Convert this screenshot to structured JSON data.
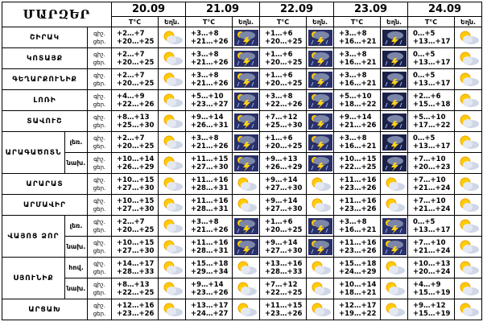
{
  "title": "ՄԱՐԶԵՐ",
  "dates": [
    "20.09",
    "21.09",
    "22.09",
    "23.09",
    "24.09"
  ],
  "col_temp": "T°C",
  "col_weather": "Եղն.",
  "tod_labels": [
    "գիշ.",
    "ցեր."
  ],
  "rows": [
    {
      "region": "ՇԻՐԱԿ",
      "sub": "",
      "days": [
        {
          "t": [
            "+2…+7",
            "+20…+25"
          ],
          "icon": "sun-cloud"
        },
        {
          "t": [
            "+3…+8",
            "+21…+26"
          ],
          "icon": "thunder-rain"
        },
        {
          "t": [
            "+1…+6",
            "+20…+25"
          ],
          "icon": "thunder-rain"
        },
        {
          "t": [
            "+3…+8",
            "+16…+21"
          ],
          "icon": "thunder-rain-night"
        },
        {
          "t": [
            "0…+5",
            "+13…+17"
          ],
          "icon": "sun-cloud"
        }
      ]
    },
    {
      "region": "ԿՈՏԱՅՔ",
      "sub": "",
      "days": [
        {
          "t": [
            "+2…+7",
            "+20…+25"
          ],
          "icon": "sun-cloud"
        },
        {
          "t": [
            "+3…+8",
            "+21…+26"
          ],
          "icon": "thunder-rain"
        },
        {
          "t": [
            "+1…+6",
            "+20…+25"
          ],
          "icon": "thunder-rain"
        },
        {
          "t": [
            "+3…+8",
            "+16…+21"
          ],
          "icon": "thunder-rain-night"
        },
        {
          "t": [
            "0…+5",
            "+13…+17"
          ],
          "icon": "sun-cloud"
        }
      ]
    },
    {
      "region": "ԳԵՂԱՐՔՈՒՆԻՔ",
      "sub": "",
      "days": [
        {
          "t": [
            "+2…+7",
            "+20…+25"
          ],
          "icon": "sun-cloud"
        },
        {
          "t": [
            "+3…+8",
            "+21…+26"
          ],
          "icon": "thunder-rain"
        },
        {
          "t": [
            "+1…+6",
            "+20…+25"
          ],
          "icon": "thunder-rain"
        },
        {
          "t": [
            "+3…+8",
            "+16…+21"
          ],
          "icon": "thunder-rain-night"
        },
        {
          "t": [
            "0…+5",
            "+13…+17"
          ],
          "icon": "sun-cloud"
        }
      ]
    },
    {
      "region": "ԼՈՌԻ",
      "sub": "",
      "days": [
        {
          "t": [
            "+4…+9",
            "+22…+26"
          ],
          "icon": "sun-cloud"
        },
        {
          "t": [
            "+5…+10",
            "+23…+27"
          ],
          "icon": "thunder-rain"
        },
        {
          "t": [
            "+3…+8",
            "+22…+26"
          ],
          "icon": "thunder-rain"
        },
        {
          "t": [
            "+5…+10",
            "+18…+22"
          ],
          "icon": "thunder-rain-night"
        },
        {
          "t": [
            "+2…+6",
            "+15…+18"
          ],
          "icon": "sun-cloud"
        }
      ]
    },
    {
      "region": "ՏԱՎՈՒՇ",
      "sub": "",
      "days": [
        {
          "t": [
            "+8…+13",
            "+25…+30"
          ],
          "icon": "sun-cloud"
        },
        {
          "t": [
            "+9…+14",
            "+26…+31"
          ],
          "icon": "thunder-rain"
        },
        {
          "t": [
            "+7…+12",
            "+25…+30"
          ],
          "icon": "thunder-rain"
        },
        {
          "t": [
            "+9…+14",
            "+21…+26"
          ],
          "icon": "thunder-rain-night"
        },
        {
          "t": [
            "+5…+10",
            "+17…+22"
          ],
          "icon": "sun-cloud"
        }
      ]
    },
    {
      "region": "ԱՐԱԳԱԾՈՏՆ",
      "sub": "լեռ.",
      "days": [
        {
          "t": [
            "+2…+7",
            "+20…+25"
          ],
          "icon": "sun-cloud"
        },
        {
          "t": [
            "+3…+8",
            "+21…+26"
          ],
          "icon": "thunder-rain"
        },
        {
          "t": [
            "+1…+6",
            "+20…+25"
          ],
          "icon": "thunder-rain"
        },
        {
          "t": [
            "+3…+8",
            "+16…+21"
          ],
          "icon": "thunder-rain-night"
        },
        {
          "t": [
            "0…+5",
            "+13…+17"
          ],
          "icon": "sun-cloud"
        }
      ]
    },
    {
      "region": "",
      "sub": "նախ.",
      "days": [
        {
          "t": [
            "+10…+14",
            "+26…+29"
          ],
          "icon": "sun-cloud"
        },
        {
          "t": [
            "+11…+15",
            "+27…+30"
          ],
          "icon": "thunder-rain"
        },
        {
          "t": [
            "+9…+13",
            "+26…+29"
          ],
          "icon": "thunder-rain"
        },
        {
          "t": [
            "+10…+15",
            "+22…+25"
          ],
          "icon": "thunder-rain-night"
        },
        {
          "t": [
            "+7…+10",
            "+20…+23"
          ],
          "icon": "sun-cloud"
        }
      ]
    },
    {
      "region": "ԱՐԱՐԱՏ",
      "sub": "",
      "days": [
        {
          "t": [
            "+10…+15",
            "+27…+30"
          ],
          "icon": "sun-cloud"
        },
        {
          "t": [
            "+11…+16",
            "+28…+31"
          ],
          "icon": "sun-cloud"
        },
        {
          "t": [
            "+9…+14",
            "+27…+30"
          ],
          "icon": "sun-cloud"
        },
        {
          "t": [
            "+11…+16",
            "+23…+26"
          ],
          "icon": "sun-cloud"
        },
        {
          "t": [
            "+7…+10",
            "+21…+24"
          ],
          "icon": "sun-cloud"
        }
      ]
    },
    {
      "region": "ԱՐՄԱՎԻՐ",
      "sub": "",
      "days": [
        {
          "t": [
            "+10…+15",
            "+27…+30"
          ],
          "icon": "sun-cloud"
        },
        {
          "t": [
            "+11…+16",
            "+28…+31"
          ],
          "icon": "sun-cloud"
        },
        {
          "t": [
            "+9…+14",
            "+27…+30"
          ],
          "icon": "sun-cloud"
        },
        {
          "t": [
            "+11…+16",
            "+23…+26"
          ],
          "icon": "sun-cloud"
        },
        {
          "t": [
            "+7…+10",
            "+21…+24"
          ],
          "icon": "sun-cloud"
        }
      ]
    },
    {
      "region": "ՎԱՅՈՑ ՁՈՐ",
      "sub": "լեռ.",
      "days": [
        {
          "t": [
            "+2…+7",
            "+20…+25"
          ],
          "icon": "sun-cloud"
        },
        {
          "t": [
            "+3…+8",
            "+21…+26"
          ],
          "icon": "thunder-rain"
        },
        {
          "t": [
            "+1…+6",
            "+20…+25"
          ],
          "icon": "thunder-rain"
        },
        {
          "t": [
            "+3…+8",
            "+16…+21"
          ],
          "icon": "thunder-rain"
        },
        {
          "t": [
            "0…+5",
            "+13…+17"
          ],
          "icon": "sun-cloud"
        }
      ]
    },
    {
      "region": "",
      "sub": "նախ.",
      "days": [
        {
          "t": [
            "+10…+15",
            "+27…+30"
          ],
          "icon": "sun-cloud"
        },
        {
          "t": [
            "+11…+16",
            "+28…+31"
          ],
          "icon": "thunder-rain"
        },
        {
          "t": [
            "+9…+14",
            "+27…+30"
          ],
          "icon": "thunder-rain"
        },
        {
          "t": [
            "+11…+16",
            "+23…+26"
          ],
          "icon": "thunder-rain"
        },
        {
          "t": [
            "+7…+10",
            "+21…+24"
          ],
          "icon": "sun-cloud"
        }
      ]
    },
    {
      "region": "ՍՅՈՒՆԻՔ",
      "sub": "հով.",
      "days": [
        {
          "t": [
            "+14…+17",
            "+28…+33"
          ],
          "icon": "sun-cloud"
        },
        {
          "t": [
            "+15…+18",
            "+29…+34"
          ],
          "icon": "sun-cloud"
        },
        {
          "t": [
            "+13…+16",
            "+28…+33"
          ],
          "icon": "sun-cloud"
        },
        {
          "t": [
            "+15…+18",
            "+24…+29"
          ],
          "icon": "sun-cloud"
        },
        {
          "t": [
            "+10…+13",
            "+20…+24"
          ],
          "icon": "sun-cloud"
        }
      ]
    },
    {
      "region": "",
      "sub": "նախ.",
      "days": [
        {
          "t": [
            "+8…+13",
            "+22…+25"
          ],
          "icon": "sun-cloud"
        },
        {
          "t": [
            "+9…+14",
            "+23…+26"
          ],
          "icon": "sun-cloud"
        },
        {
          "t": [
            "+7…+12",
            "+22…+25"
          ],
          "icon": "sun-cloud"
        },
        {
          "t": [
            "+10…+14",
            "+18…+21"
          ],
          "icon": "sun-cloud"
        },
        {
          "t": [
            "+4…+9",
            "+15…+19"
          ],
          "icon": "sun-cloud"
        }
      ]
    },
    {
      "region": "ԱՐՑԱԽ",
      "sub": "",
      "days": [
        {
          "t": [
            "+12…+16",
            "+23…+26"
          ],
          "icon": "sun-cloud"
        },
        {
          "t": [
            "+13…+17",
            "+24…+27"
          ],
          "icon": "sun-cloud"
        },
        {
          "t": [
            "+11…+15",
            "+23…+26"
          ],
          "icon": "sun-cloud"
        },
        {
          "t": [
            "+12…+17",
            "+19…+22"
          ],
          "icon": "sun-cloud"
        },
        {
          "t": [
            "+9…+12",
            "+15…+19"
          ],
          "icon": "sun-cloud"
        }
      ]
    }
  ]
}
